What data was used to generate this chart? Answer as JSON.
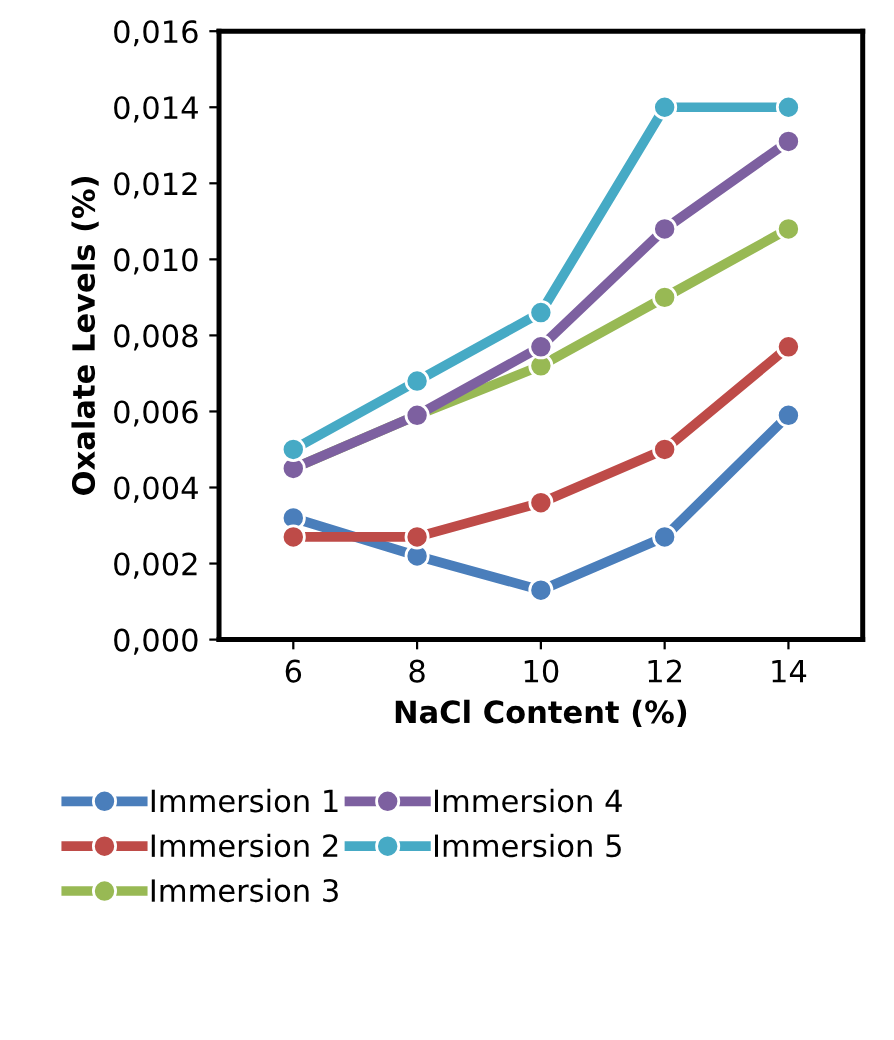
{
  "chart_data": {
    "type": "line",
    "xlabel": "NaCl Content (%)",
    "ylabel": "Oxalate Levels (%)",
    "x": [
      6,
      8,
      10,
      12,
      14
    ],
    "series": [
      {
        "name": "Immersion 1",
        "color": "#4a7ebb",
        "values": [
          0.0032,
          0.0022,
          0.0013,
          0.0027,
          0.0059
        ]
      },
      {
        "name": "Immersion 2",
        "color": "#be4b48",
        "values": [
          0.0027,
          0.0027,
          0.0036,
          0.005,
          0.0077
        ]
      },
      {
        "name": "Immersion 3",
        "color": "#98b954",
        "values": [
          0.0045,
          0.0059,
          0.0072,
          0.009,
          0.0108
        ]
      },
      {
        "name": "Immersion 4",
        "color": "#7d60a0",
        "values": [
          0.0045,
          0.0059,
          0.0077,
          0.0108,
          0.0131
        ]
      },
      {
        "name": "Immersion 5",
        "color": "#46aac5",
        "values": [
          0.005,
          0.0068,
          0.0086,
          0.014,
          0.014
        ]
      }
    ],
    "xlim": [
      4.8,
      15.2
    ],
    "xticks": [
      6,
      8,
      10,
      12,
      14
    ],
    "ylim": [
      0,
      0.016
    ],
    "yticks": [
      {
        "value": 0,
        "label": "0,000"
      },
      {
        "value": 0.002,
        "label": "0,002"
      },
      {
        "value": 0.004,
        "label": "0,004"
      },
      {
        "value": 0.006,
        "label": "0,006"
      },
      {
        "value": 0.008,
        "label": "0,008"
      },
      {
        "value": 0.01,
        "label": "0,010"
      },
      {
        "value": 0.012,
        "label": "0,012"
      },
      {
        "value": 0.014,
        "label": "0,014"
      },
      {
        "value": 0.016,
        "label": "0,016"
      }
    ],
    "grid": false,
    "legend": "bottom",
    "marker": "circle",
    "line_style": "solid"
  }
}
